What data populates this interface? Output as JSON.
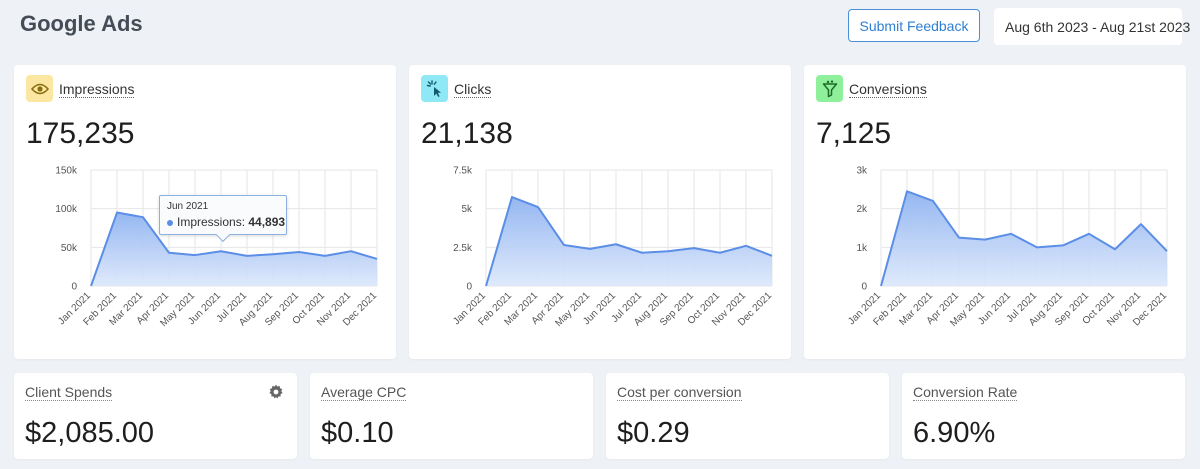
{
  "header": {
    "title": "Google Ads",
    "feedback_label": "Submit Feedback",
    "date_range": "Aug 6th 2023 - Aug 21st 2023"
  },
  "colors": {
    "line": "#5b8ee6",
    "fill_top": "#8fb3f0",
    "fill_bottom": "#dbe7fb",
    "grid": "#e6e6e6"
  },
  "metrics": [
    {
      "label": "Impressions",
      "value": "175,235",
      "icon": "eye-icon",
      "icon_bg": "#fbe7a1"
    },
    {
      "label": "Clicks",
      "value": "21,138",
      "icon": "cursor-click-icon",
      "icon_bg": "#8ee8f5"
    },
    {
      "label": "Conversions",
      "value": "7,125",
      "icon": "funnel-icon",
      "icon_bg": "#8ef09a"
    }
  ],
  "tooltip": {
    "month": "Jun 2021",
    "series": "Impressions:",
    "value": "44,893"
  },
  "stats": [
    {
      "label": "Client Spends",
      "value": "$2,085.00"
    },
    {
      "label": "Average CPC",
      "value": "$0.10"
    },
    {
      "label": "Cost per conversion",
      "value": "$0.29"
    },
    {
      "label": "Conversion Rate",
      "value": "6.90%"
    }
  ],
  "chart_data": [
    {
      "type": "area",
      "series": [
        {
          "name": "Impressions",
          "values": [
            0,
            95000,
            89000,
            43000,
            40000,
            44893,
            39000,
            41000,
            44000,
            39000,
            45000,
            35000
          ]
        }
      ],
      "categories": [
        "Jan 2021",
        "Feb 2021",
        "Mar 2021",
        "Apr 2021",
        "May 2021",
        "Jun 2021",
        "Jul 2021",
        "Aug 2021",
        "Sep 2021",
        "Oct 2021",
        "Nov 2021",
        "Dec 2021"
      ],
      "yticks": [
        "0",
        "50k",
        "100k",
        "150k"
      ],
      "ylim": [
        0,
        150000
      ],
      "grid": true
    },
    {
      "type": "area",
      "series": [
        {
          "name": "Clicks",
          "values": [
            0,
            5750,
            5100,
            2650,
            2400,
            2700,
            2150,
            2250,
            2450,
            2150,
            2600,
            1950
          ]
        }
      ],
      "categories": [
        "Jan 2021",
        "Feb 2021",
        "Mar 2021",
        "Apr 2021",
        "May 2021",
        "Jun 2021",
        "Jul 2021",
        "Aug 2021",
        "Sep 2021",
        "Oct 2021",
        "Nov 2021",
        "Dec 2021"
      ],
      "yticks": [
        "0",
        "2.5k",
        "5k",
        "7.5k"
      ],
      "ylim": [
        0,
        7500
      ],
      "grid": true
    },
    {
      "type": "area",
      "series": [
        {
          "name": "Conversions",
          "values": [
            0,
            2450,
            2200,
            1250,
            1200,
            1350,
            1000,
            1050,
            1350,
            950,
            1600,
            900
          ]
        }
      ],
      "categories": [
        "Jan 2021",
        "Feb 2021",
        "Mar 2021",
        "Apr 2021",
        "May 2021",
        "Jun 2021",
        "Jul 2021",
        "Aug 2021",
        "Sep 2021",
        "Oct 2021",
        "Nov 2021",
        "Dec 2021"
      ],
      "yticks": [
        "0",
        "1k",
        "2k",
        "3k"
      ],
      "ylim": [
        0,
        3000
      ],
      "grid": true
    }
  ]
}
